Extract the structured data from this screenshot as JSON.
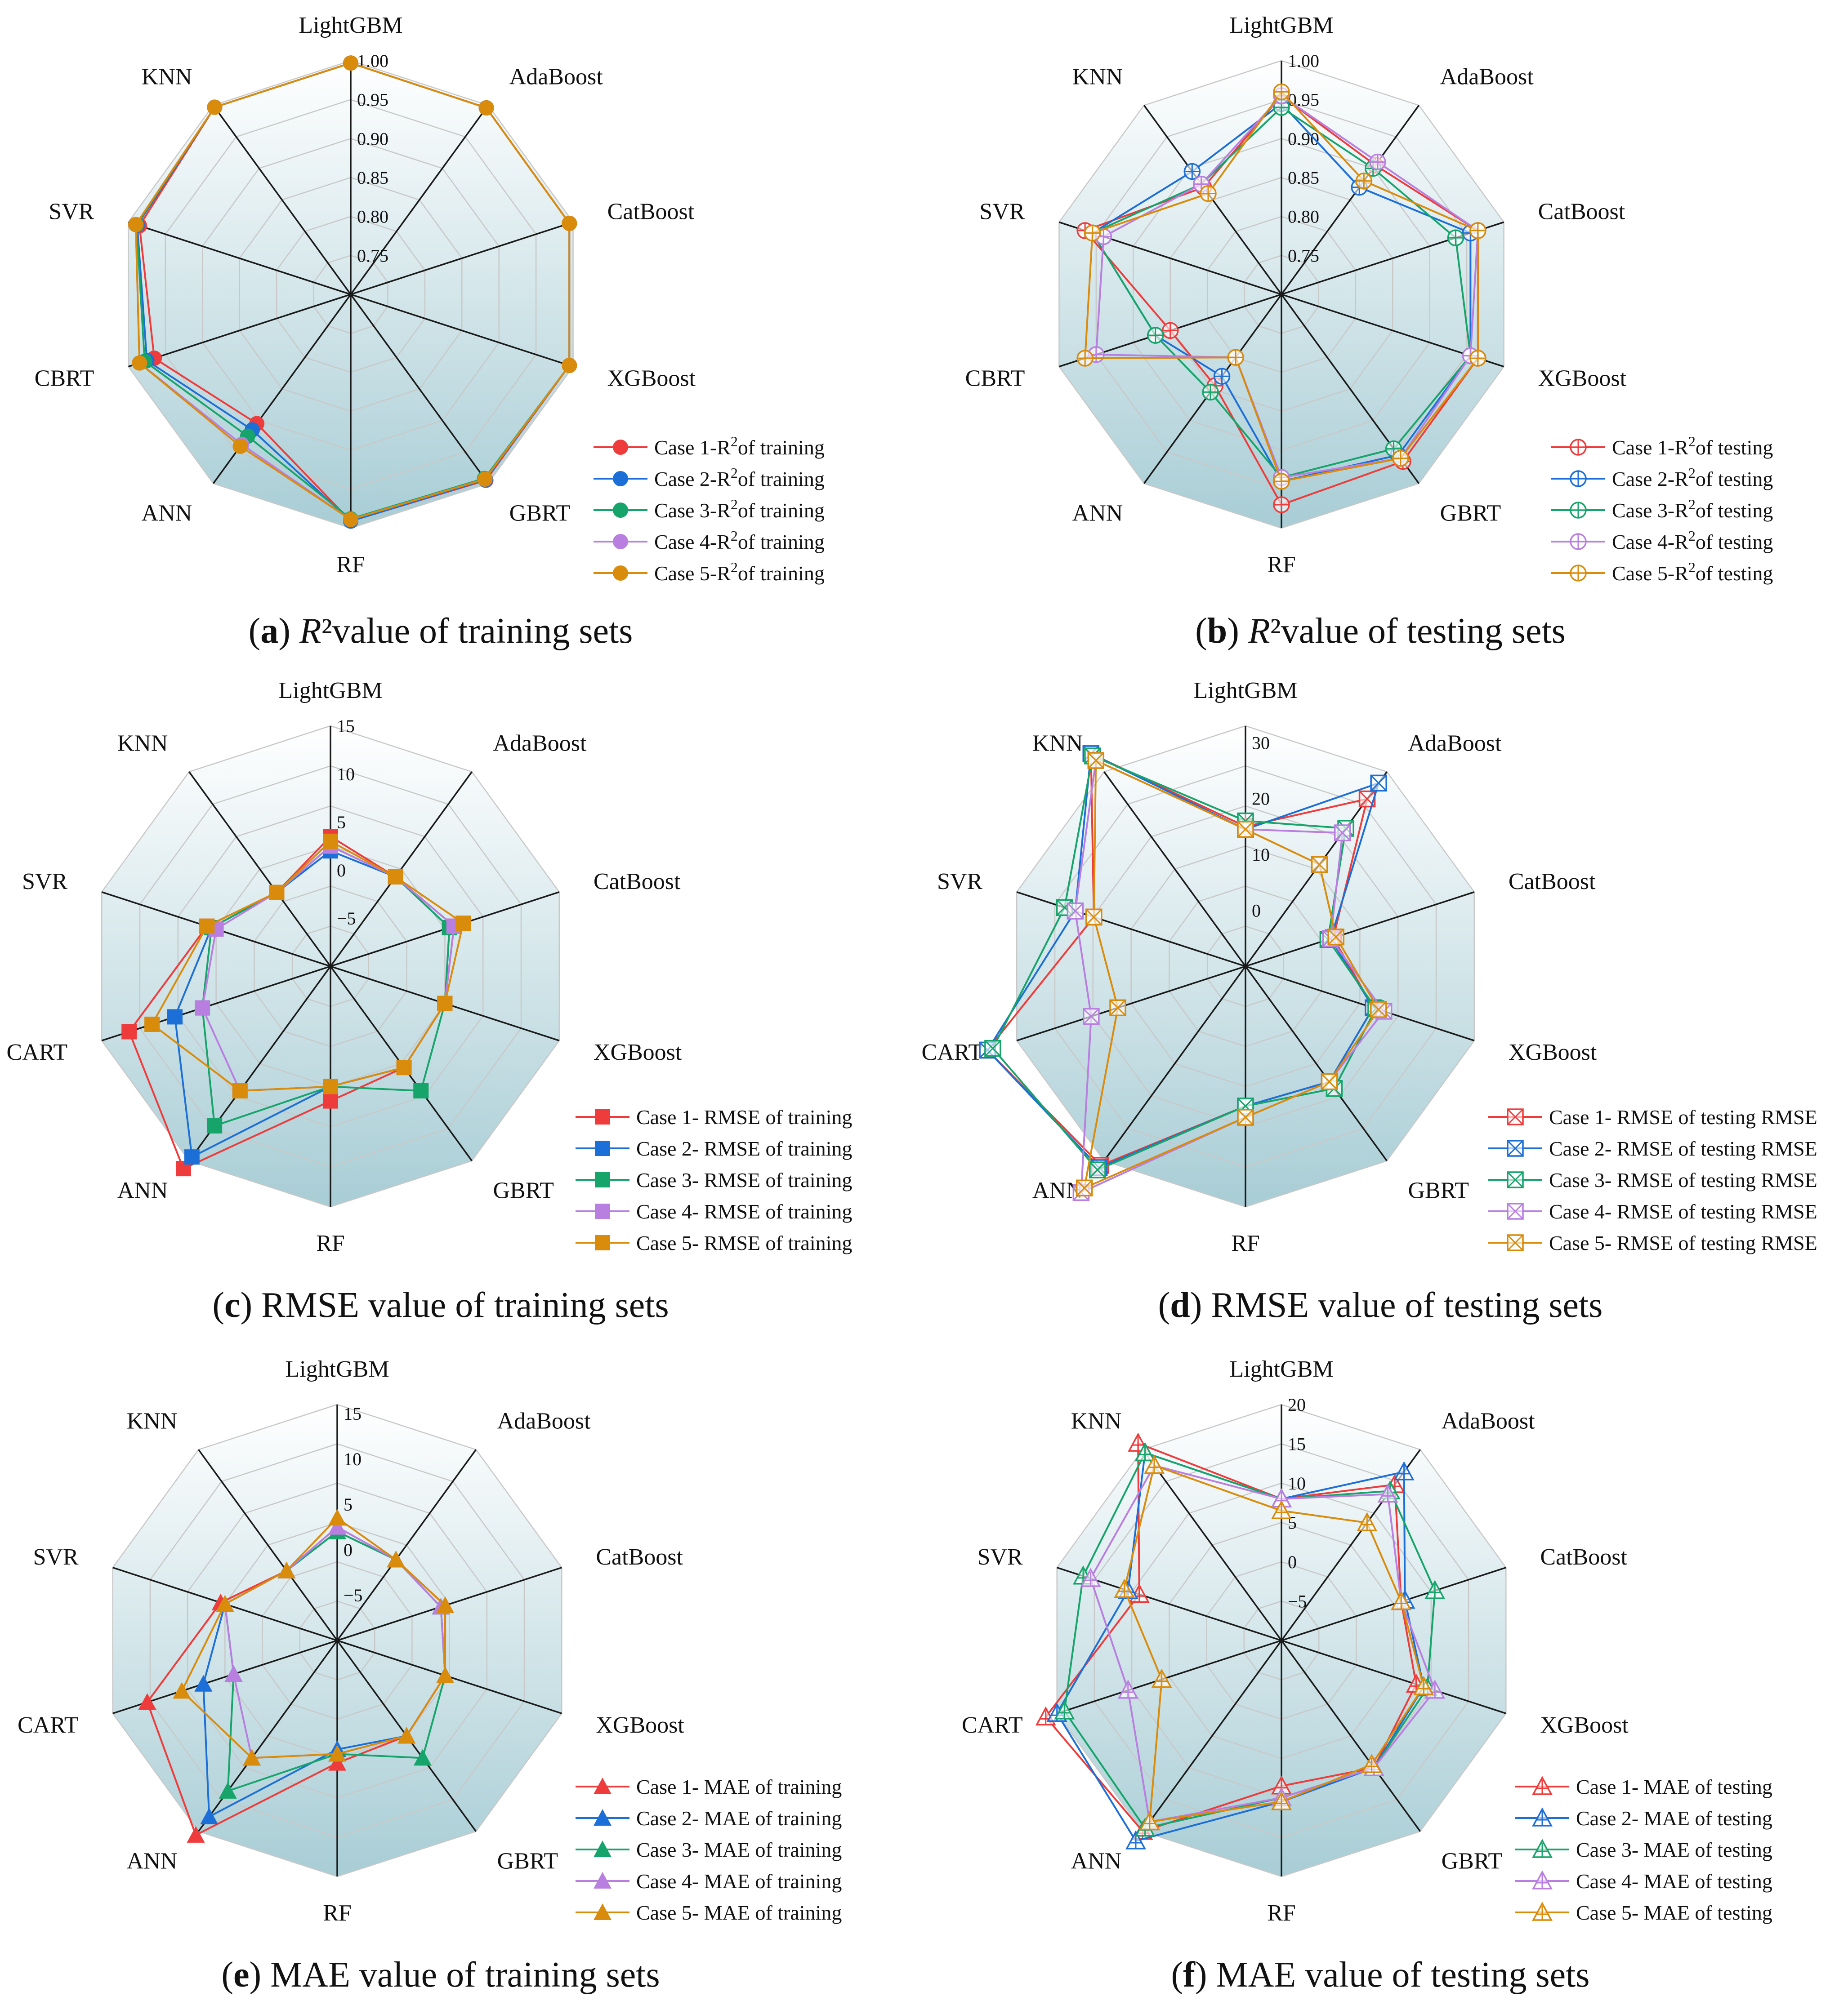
{
  "panels": [
    {
      "id": "a",
      "caption": {
        "letter": "a",
        "parts": [
          {
            "t": "R",
            "i": true
          },
          {
            "t": "²",
            "i": false
          },
          {
            "t": " value of training sets",
            "i": false
          }
        ]
      },
      "chart_data": {
        "type": "radar",
        "axes": [
          "LightGBM",
          "AdaBoost",
          "CatBoost",
          "XGBoost",
          "GBRT",
          "RF",
          "ANN",
          "CBRT",
          "SVR",
          "KNN"
        ],
        "rmin": 0.7,
        "rmax": 1.0,
        "ticks": [
          0.75,
          0.8,
          0.85,
          0.9,
          0.95,
          1.0
        ],
        "tick_labels": [
          "0.75",
          "0.80",
          "0.85",
          "0.90",
          "0.95",
          "1.00"
        ],
        "marker": "circle",
        "legend": {
          "prefix": "Case ",
          "mid": "-R",
          "sup": "2",
          "suffix": "of training"
        },
        "series": [
          {
            "name": "Case 1-R2of training",
            "color": "#ee3b3b",
            "values": [
              0.997,
              0.996,
              0.995,
              0.995,
              0.995,
              0.991,
              0.905,
              0.965,
              0.985,
              0.997
            ]
          },
          {
            "name": "Case 2-R2of training",
            "color": "#1d6fd8",
            "values": [
              0.997,
              0.996,
              0.995,
              0.995,
              0.994,
              0.991,
              0.915,
              0.975,
              0.988,
              0.997
            ]
          },
          {
            "name": "Case 3-R2of training",
            "color": "#17a46b",
            "values": [
              0.997,
              0.996,
              0.995,
              0.995,
              0.992,
              0.988,
              0.925,
              0.978,
              0.989,
              0.997
            ]
          },
          {
            "name": "Case 4-R2of training",
            "color": "#b87fe0",
            "values": [
              0.997,
              0.996,
              0.995,
              0.995,
              0.993,
              0.989,
              0.938,
              0.985,
              0.99,
              0.997
            ]
          },
          {
            "name": "Case 5-R2of training",
            "color": "#d98b0b",
            "values": [
              0.997,
              0.996,
              0.995,
              0.995,
              0.993,
              0.989,
              0.941,
              0.985,
              0.99,
              0.997
            ]
          }
        ]
      }
    },
    {
      "id": "b",
      "caption": {
        "letter": "b",
        "parts": [
          {
            "t": "R",
            "i": true
          },
          {
            "t": "²",
            "i": false
          },
          {
            "t": " value of testing sets",
            "i": false
          }
        ]
      },
      "chart_data": {
        "type": "radar",
        "axes": [
          "LightGBM",
          "AdaBoost",
          "CatBoost",
          "XGBoost",
          "GBRT",
          "RF",
          "ANN",
          "CBRT",
          "SVR",
          "KNN"
        ],
        "rmin": 0.7,
        "rmax": 1.0,
        "ticks": [
          0.75,
          0.8,
          0.85,
          0.9,
          0.95,
          1.0
        ],
        "tick_labels": [
          "0.75",
          "0.80",
          "0.85",
          "0.90",
          "0.95",
          "1.00"
        ],
        "marker": "circle-plus",
        "legend": {
          "prefix": "Case ",
          "mid": "-R",
          "sup": "2",
          "suffix": "of testing"
        },
        "series": [
          {
            "name": "Case 1-R2of testing",
            "color": "#ee3b3b",
            "values": [
              0.955,
              0.905,
              0.965,
              0.965,
              0.965,
              0.97,
              0.845,
              0.85,
              0.965,
              0.87
            ]
          },
          {
            "name": "Case 2-R2of testing",
            "color": "#1d6fd8",
            "values": [
              0.945,
              0.87,
              0.955,
              0.955,
              0.955,
              0.94,
              0.83,
              0.87,
              0.955,
              0.895
            ]
          },
          {
            "name": "Case 3-R2of testing",
            "color": "#17a46b",
            "values": [
              0.94,
              0.9,
              0.935,
              0.955,
              0.945,
              0.935,
              0.855,
              0.87,
              0.955,
              0.875
            ]
          },
          {
            "name": "Case 4-R2of testing",
            "color": "#b87fe0",
            "values": [
              0.955,
              0.91,
              0.965,
              0.955,
              0.96,
              0.935,
              0.8,
              0.95,
              0.94,
              0.875
            ]
          },
          {
            "name": "Case 5-R2of testing",
            "color": "#d98b0b",
            "values": [
              0.96,
              0.88,
              0.965,
              0.965,
              0.96,
              0.94,
              0.8,
              0.965,
              0.955,
              0.86
            ]
          }
        ]
      }
    },
    {
      "id": "c",
      "caption": {
        "letter": "c",
        "parts": [
          {
            "t": " RMSE value of training sets",
            "i": false
          }
        ]
      },
      "chart_data": {
        "type": "radar",
        "axes": [
          "LightGBM",
          "AdaBoost",
          "CatBoost",
          "XGBoost",
          "GBRT",
          "RF",
          "ANN",
          "CART",
          "SVR",
          "KNN"
        ],
        "rmin": -10,
        "rmax": 15,
        "ticks": [
          -5,
          0,
          5,
          10,
          15
        ],
        "tick_labels": [
          "−5",
          "0",
          "5",
          "10",
          "15"
        ],
        "marker": "square",
        "legend": {
          "prefix": "Case ",
          "mid": "- RMSE of training",
          "sup": "",
          "suffix": ""
        },
        "series": [
          {
            "name": "Case 1- RMSE of training",
            "color": "#ee3b3b",
            "values": [
              3.5,
              1.5,
              3.5,
              2.5,
              3.0,
              4.0,
              16.0,
              12.0,
              3.5,
              -0.5
            ]
          },
          {
            "name": "Case 2- RMSE of training",
            "color": "#1d6fd8",
            "values": [
              2.0,
              1.5,
              3.0,
              2.5,
              3.0,
              2.5,
              14.5,
              7.0,
              3.0,
              -0.5
            ]
          },
          {
            "name": "Case 3- RMSE of training",
            "color": "#17a46b",
            "values": [
              2.5,
              1.5,
              3.0,
              2.5,
              6.0,
              2.5,
              10.5,
              4.0,
              3.0,
              -0.5
            ]
          },
          {
            "name": "Case 4- RMSE of training",
            "color": "#b87fe0",
            "values": [
              2.5,
              1.5,
              3.5,
              2.5,
              3.0,
              2.5,
              6.0,
              4.0,
              2.5,
              -0.5
            ]
          },
          {
            "name": "Case 5- RMSE of training",
            "color": "#d98b0b",
            "values": [
              3.0,
              1.5,
              4.5,
              2.5,
              3.0,
              2.5,
              6.0,
              9.5,
              3.5,
              -0.5
            ]
          }
        ]
      }
    },
    {
      "id": "d",
      "caption": {
        "letter": "d",
        "parts": [
          {
            "t": " RMSE value of testing sets",
            "i": false
          }
        ]
      },
      "chart_data": {
        "type": "radar",
        "axes": [
          "LightGBM",
          "AdaBoost",
          "CatBoost",
          "XGBoost",
          "GBRT",
          "RF",
          "ANN",
          "CART",
          "SVR",
          "KNN"
        ],
        "rmin": -10,
        "rmax": 33,
        "ticks": [
          0,
          10,
          20,
          30
        ],
        "tick_labels": [
          "0",
          "10",
          "20",
          "30"
        ],
        "marker": "square-x",
        "legend": {
          "prefix": "Case ",
          "mid": "- RMSE of testing RMSE",
          "sup": "",
          "suffix": ""
        },
        "series": [
          {
            "name": "Case 1- RMSE of testing RMSE",
            "color": "#ee3b3b",
            "values": [
              15.0,
              27.0,
              6.5,
              14.0,
              15.5,
              15.0,
              34.0,
              38.5,
              18.5,
              37.0
            ]
          },
          {
            "name": "Case 2- RMSE of testing RMSE",
            "color": "#1d6fd8",
            "values": [
              14.5,
              30.5,
              6.0,
              14.0,
              15.5,
              15.0,
              34.5,
              38.5,
              22.0,
              37.0
            ]
          },
          {
            "name": "Case 3- RMSE of testing RMSE",
            "color": "#17a46b",
            "values": [
              16.0,
              20.5,
              5.5,
              14.5,
              17.0,
              15.0,
              35.0,
              37.5,
              24.0,
              36.5
            ]
          },
          {
            "name": "Case 4- RMSE of testing RMSE",
            "color": "#b87fe0",
            "values": [
              14.5,
              19.5,
              6.0,
              16.0,
              15.5,
              17.0,
              40.0,
              19.0,
              22.0,
              35.5
            ]
          },
          {
            "name": "Case 5- RMSE of testing RMSE",
            "color": "#d98b0b",
            "values": [
              14.5,
              12.5,
              7.0,
              15.0,
              15.5,
              17.0,
              39.0,
              14.0,
              18.5,
              35.5
            ]
          }
        ]
      }
    },
    {
      "id": "e",
      "caption": {
        "letter": "e",
        "parts": [
          {
            "t": " MAE value of training sets",
            "i": false
          }
        ]
      },
      "chart_data": {
        "type": "radar",
        "axes": [
          "LightGBM",
          "AdaBoost",
          "CatBoost",
          "XGBoost",
          "GBRT",
          "RF",
          "ANN",
          "CART",
          "SVR",
          "KNN"
        ],
        "rmin": -10,
        "rmax": 16,
        "ticks": [
          -5,
          0,
          5,
          10,
          15
        ],
        "tick_labels": [
          "−5",
          "0",
          "5",
          "10",
          "15"
        ],
        "marker": "triangle",
        "legend": {
          "prefix": "Case ",
          "mid": "- MAE of training",
          "sup": "",
          "suffix": ""
        },
        "series": [
          {
            "name": "Case 1- MAE of training",
            "color": "#ee3b3b",
            "values": [
              2.5,
              1.0,
              2.5,
              2.5,
              3.0,
              3.5,
              16.5,
              12.0,
              3.5,
              -0.5
            ]
          },
          {
            "name": "Case 2- MAE of training",
            "color": "#1d6fd8",
            "values": [
              2.0,
              1.0,
              2.0,
              2.5,
              3.0,
              2.0,
              14.0,
              5.5,
              3.0,
              -0.5
            ]
          },
          {
            "name": "Case 3- MAE of training",
            "color": "#17a46b",
            "values": [
              2.0,
              1.0,
              2.0,
              2.5,
              6.0,
              2.5,
              10.5,
              2.0,
              3.0,
              -0.5
            ]
          },
          {
            "name": "Case 4- MAE of training",
            "color": "#b87fe0",
            "values": [
              2.5,
              1.0,
              2.0,
              2.5,
              3.0,
              2.5,
              6.0,
              2.0,
              3.0,
              -0.5
            ]
          },
          {
            "name": "Case 5- MAE of training",
            "color": "#d98b0b",
            "values": [
              3.5,
              1.0,
              2.5,
              2.5,
              3.0,
              2.5,
              6.0,
              8.0,
              3.0,
              -0.5
            ]
          }
        ]
      }
    },
    {
      "id": "f",
      "caption": {
        "letter": "f",
        "parts": [
          {
            "t": " MAE value of testing sets",
            "i": false
          }
        ]
      },
      "chart_data": {
        "type": "radar",
        "axes": [
          "LightGBM",
          "AdaBoost",
          "CatBoost",
          "XGBoost",
          "GBRT",
          "RF",
          "ANN",
          "CART",
          "SVR",
          "KNN"
        ],
        "rmin": -10,
        "rmax": 20,
        "ticks": [
          -5,
          0,
          5,
          10,
          15,
          20
        ],
        "tick_labels": [
          "−5",
          "0",
          "5",
          "10",
          "15",
          "20"
        ],
        "marker": "triangle-open",
        "legend": {
          "prefix": "Case ",
          "mid": "- MAE of testing",
          "sup": "",
          "suffix": ""
        },
        "series": [
          {
            "name": "Case 1- MAE of testing",
            "color": "#ee3b3b",
            "values": [
              8.0,
              14.5,
              6.0,
              8.0,
              10.0,
              8.5,
              20.0,
              21.5,
              9.0,
              21.0
            ]
          },
          {
            "name": "Case 2- MAE of testing",
            "color": "#1d6fd8",
            "values": [
              8.0,
              16.5,
              6.5,
              9.0,
              10.0,
              10.5,
              21.5,
              20.0,
              10.5,
              19.5
            ]
          },
          {
            "name": "Case 3- MAE of testing",
            "color": "#17a46b",
            "values": [
              8.0,
              13.5,
              10.5,
              9.5,
              10.0,
              10.0,
              19.5,
              19.0,
              16.5,
              19.5
            ]
          },
          {
            "name": "Case 4- MAE of testing",
            "color": "#b87fe0",
            "values": [
              8.0,
              13.0,
              6.0,
              10.5,
              10.0,
              10.0,
              18.5,
              10.5,
              15.5,
              17.5
            ]
          },
          {
            "name": "Case 5- MAE of testing",
            "color": "#d98b0b",
            "values": [
              6.5,
              8.5,
              6.0,
              9.0,
              9.5,
              10.5,
              18.5,
              6.0,
              11.0,
              17.5
            ]
          }
        ]
      }
    }
  ]
}
